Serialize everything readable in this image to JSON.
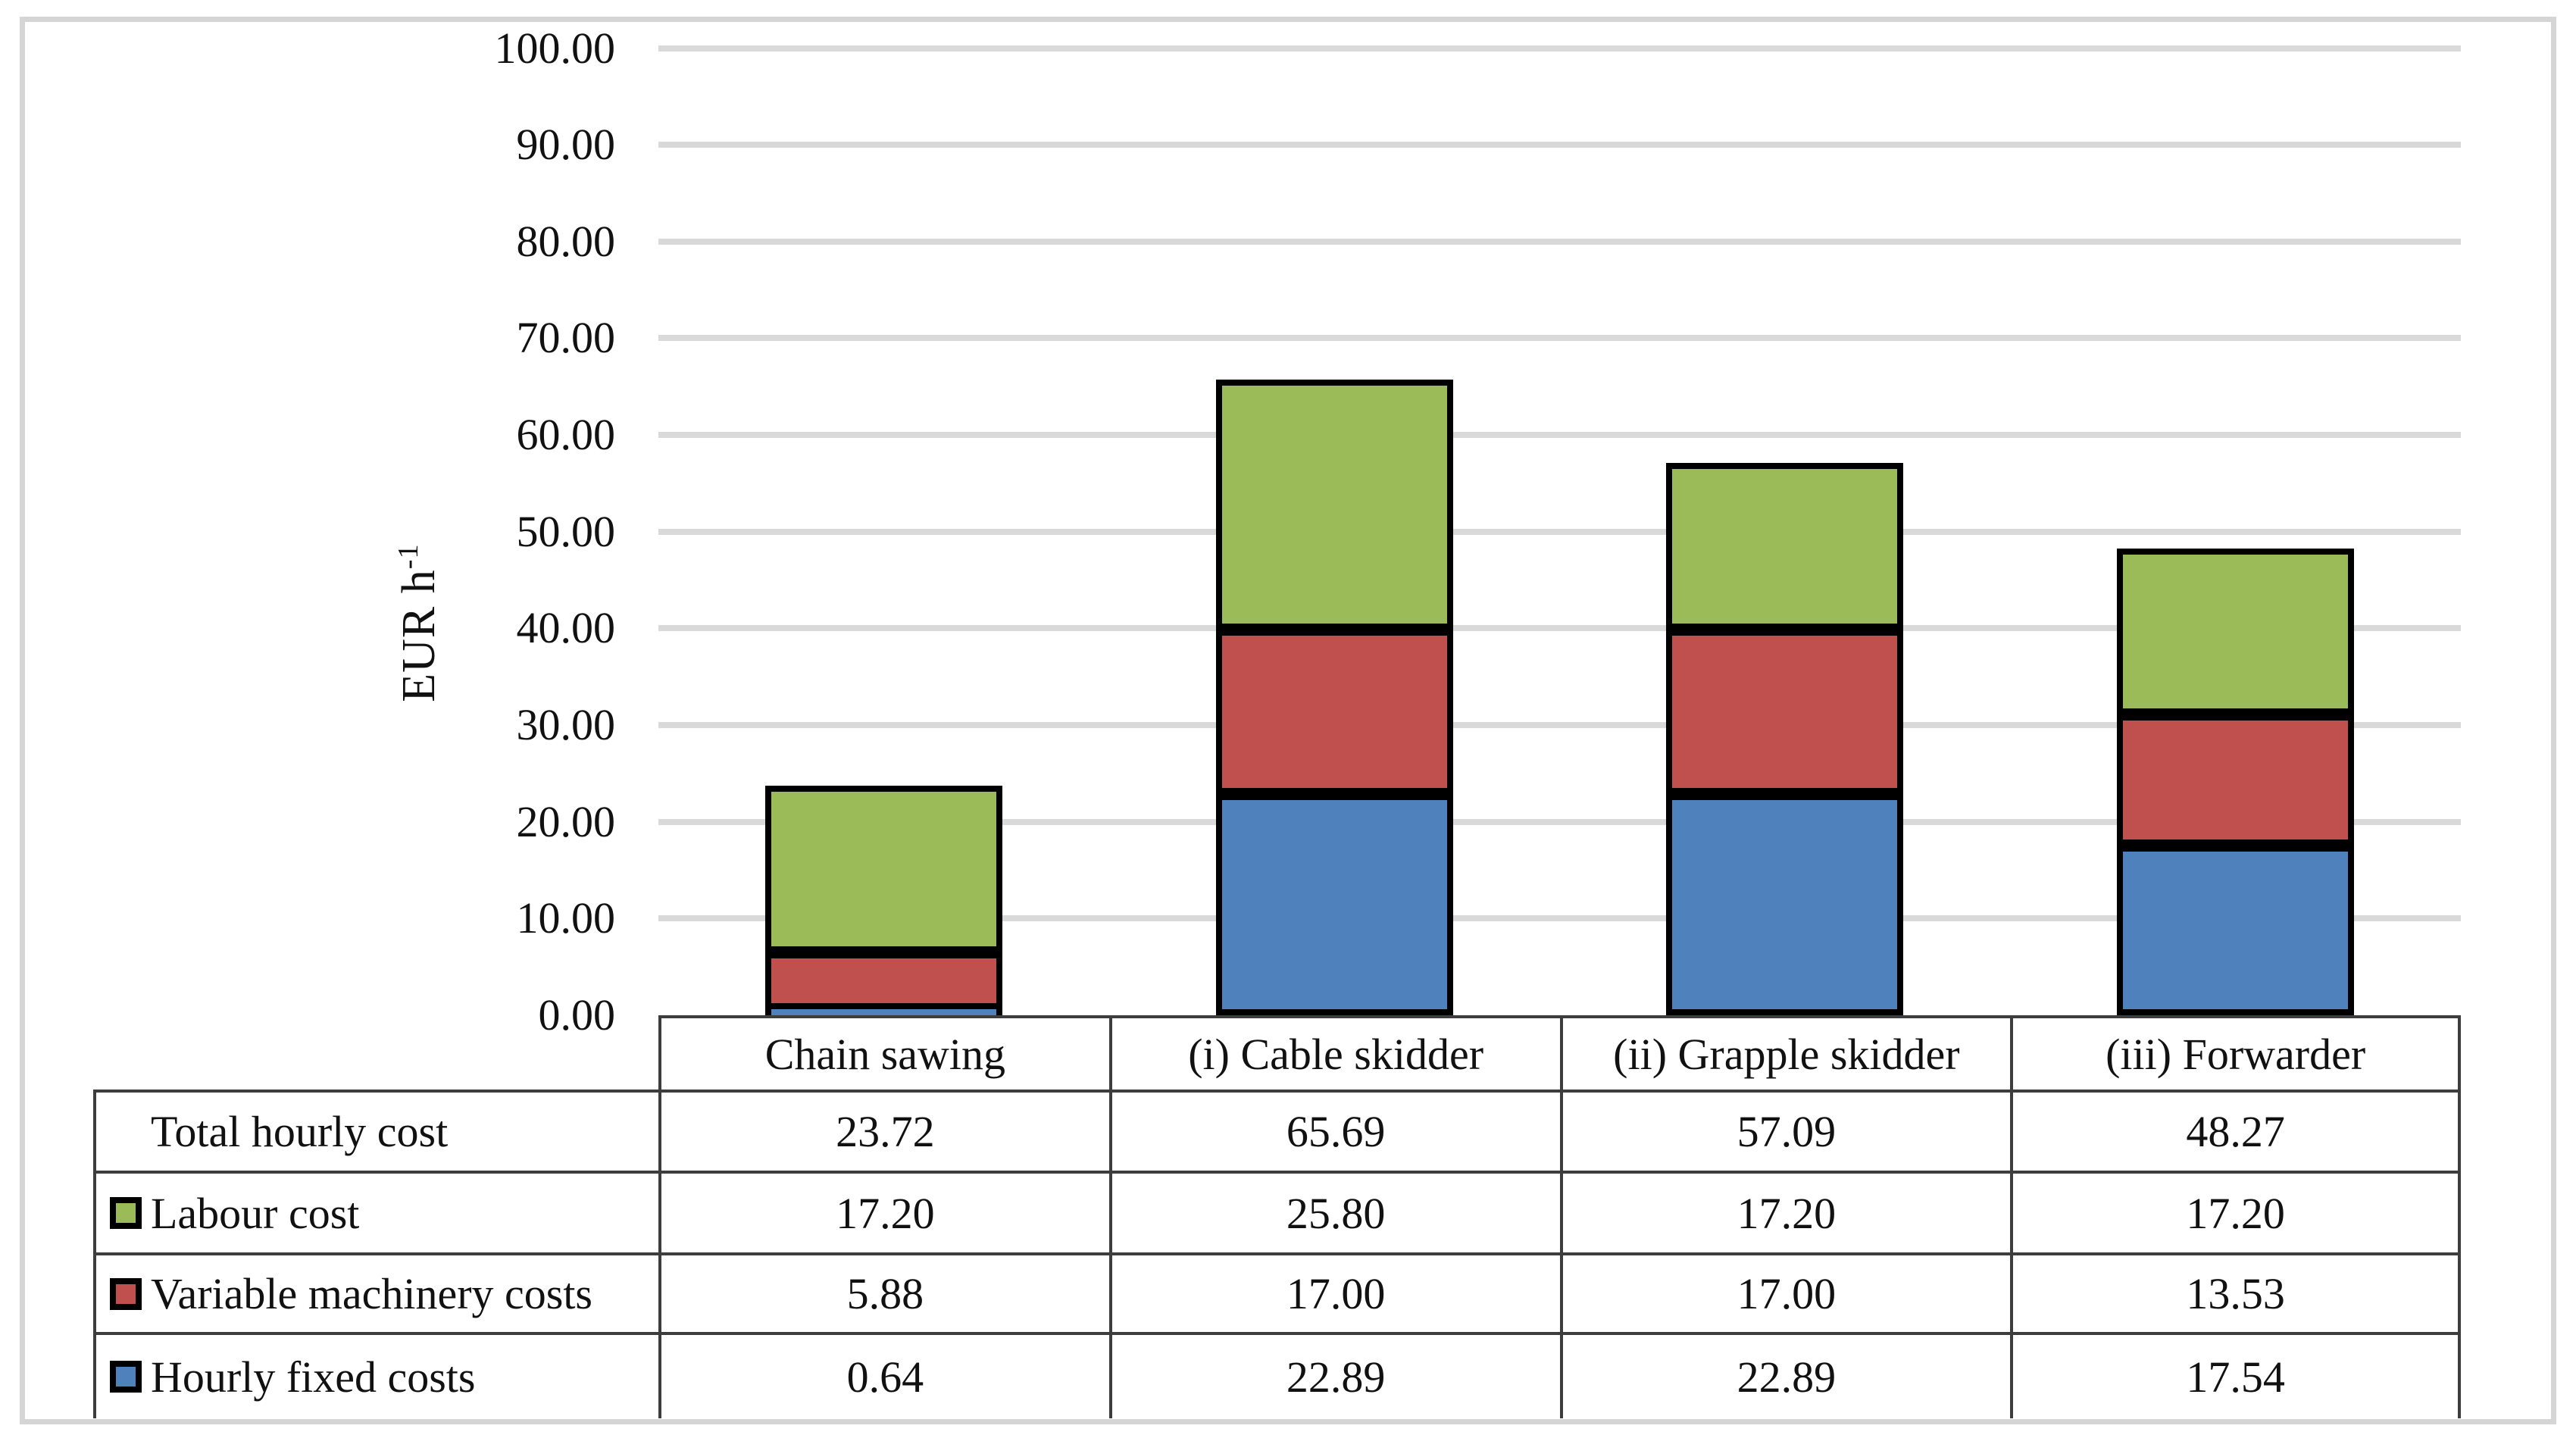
{
  "figure": {
    "y_axis": {
      "title": "EUR h",
      "title_sup": "-1",
      "min": 0,
      "max": 100,
      "step": 10,
      "tick_labels": [
        "100.00",
        "90.00",
        "80.00",
        "70.00",
        "60.00",
        "50.00",
        "40.00",
        "30.00",
        "20.00",
        "10.00",
        "0.00"
      ]
    },
    "colors": {
      "hourly_fixed": "#4F81BD",
      "variable_machinery": "#C0504D",
      "labour": "#9BBB59",
      "gridline": "#D9D9D9",
      "bar_border": "#000000",
      "table_border": "#3d3d3d",
      "frame": "#d5d5d5"
    }
  },
  "chart_data": {
    "type": "bar",
    "stacked": true,
    "title": "",
    "xlabel": "",
    "ylabel": "EUR h-1",
    "ylim": [
      0,
      100
    ],
    "grid": true,
    "legend_position": "data-table-left-column",
    "categories": [
      "Chain sawing",
      "(i) Cable skidder",
      "(ii) Grapple skidder",
      "(iii) Forwarder"
    ],
    "series": [
      {
        "name": "Hourly fixed costs",
        "key": "hourly-fixed-costs",
        "color": "#4F81BD",
        "values": [
          0.64,
          22.89,
          22.89,
          17.54
        ]
      },
      {
        "name": "Variable machinery costs",
        "key": "variable-machinery-costs",
        "color": "#C0504D",
        "values": [
          5.88,
          17.0,
          17.0,
          13.53
        ]
      },
      {
        "name": "Labour cost",
        "key": "labour-cost",
        "color": "#9BBB59",
        "values": [
          17.2,
          25.8,
          17.2,
          17.2
        ]
      }
    ],
    "totals": {
      "name": "Total hourly cost",
      "values": [
        23.72,
        65.69,
        57.09,
        48.27
      ]
    }
  },
  "table": {
    "header": [
      "Chain sawing",
      "(i) Cable skidder",
      "(ii) Grapple skidder",
      "(iii) Forwarder"
    ],
    "rows": [
      {
        "label": "Total hourly cost",
        "swatch": null,
        "values": [
          "23.72",
          "65.69",
          "57.09",
          "48.27"
        ]
      },
      {
        "label": "Labour cost",
        "swatch": "#9BBB59",
        "values": [
          "17.20",
          "25.80",
          "17.20",
          "17.20"
        ]
      },
      {
        "label": "Variable machinery costs",
        "swatch": "#C0504D",
        "values": [
          "5.88",
          "17.00",
          "17.00",
          "13.53"
        ]
      },
      {
        "label": "Hourly fixed costs",
        "swatch": "#4F81BD",
        "values": [
          "0.64",
          "22.89",
          "22.89",
          "17.54"
        ]
      }
    ]
  }
}
